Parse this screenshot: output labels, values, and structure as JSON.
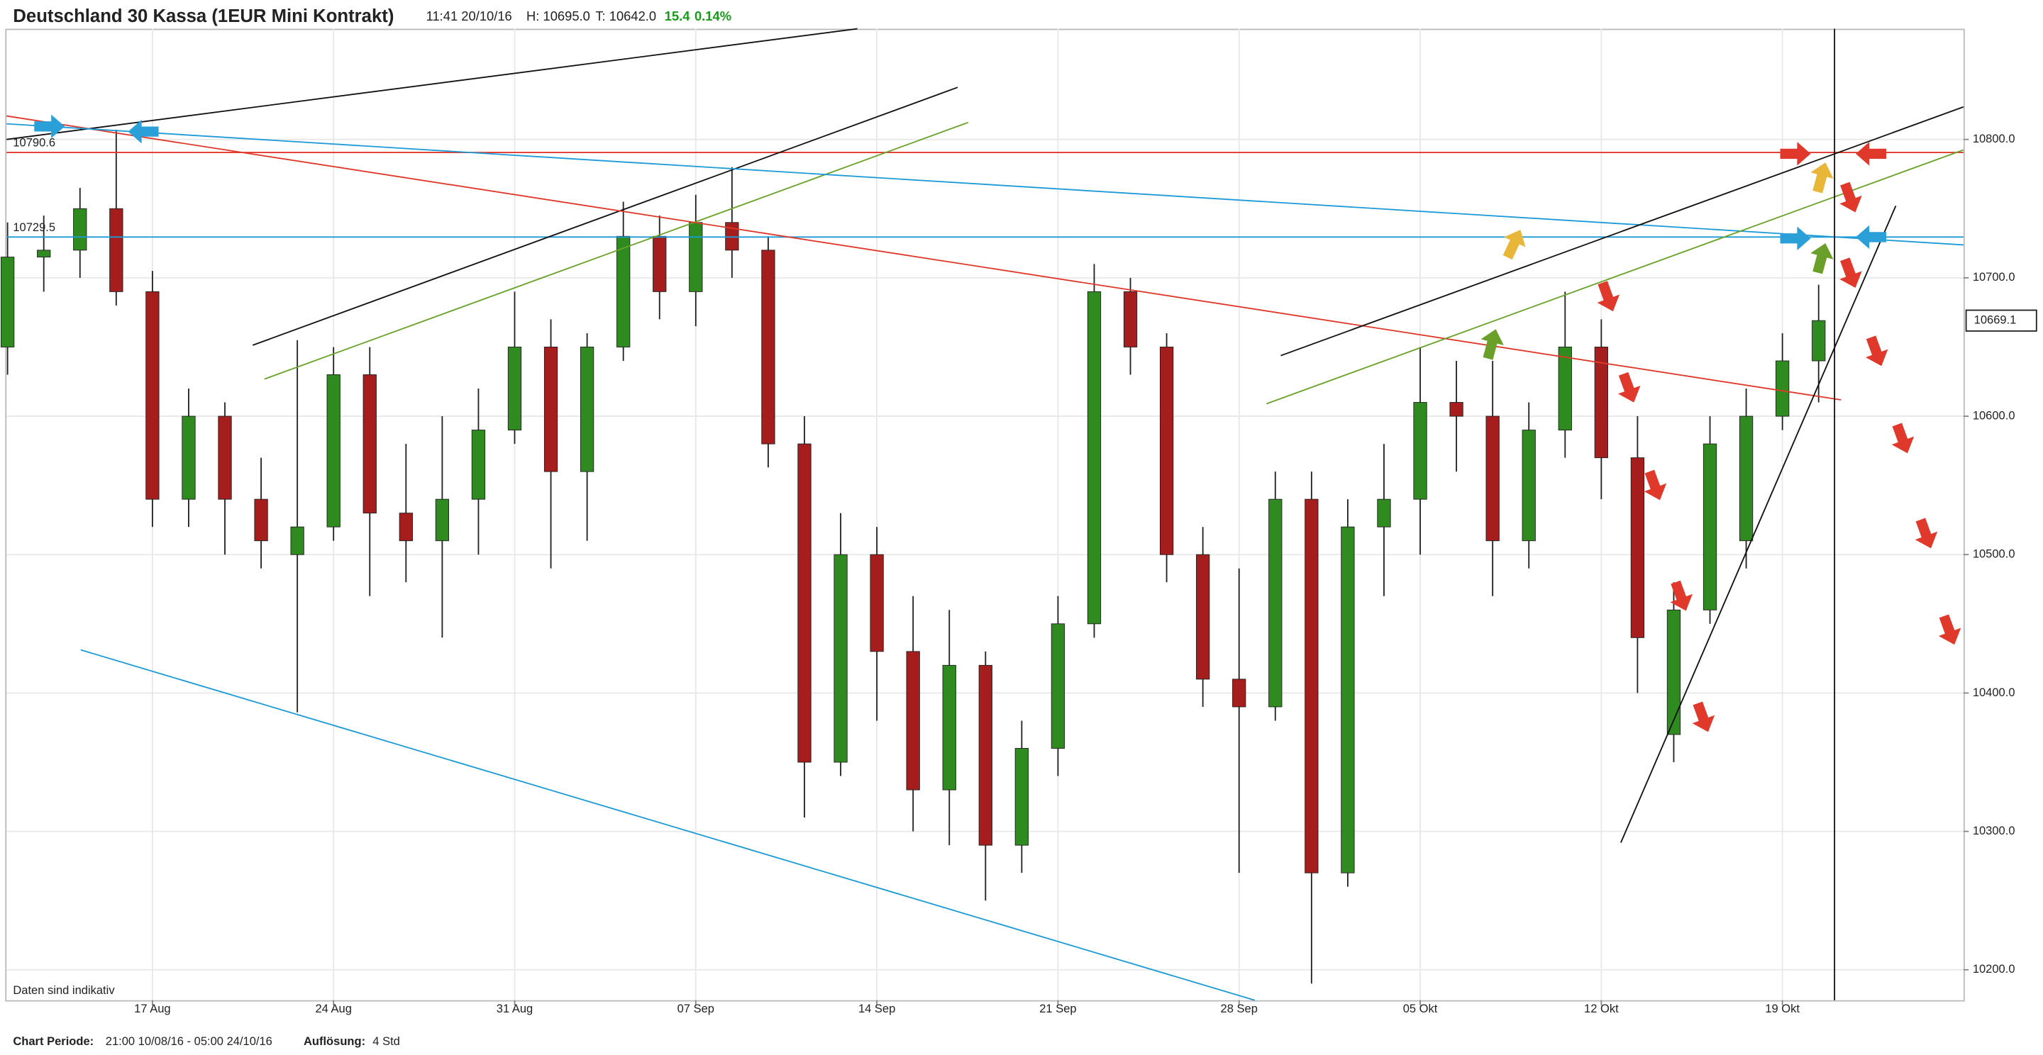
{
  "header": {
    "title": "Deutschland 30 Kassa (1EUR Mini Kontrakt)",
    "time": "11:41 20/10/16",
    "high": "H: 10695.0",
    "low": "T: 10642.0",
    "change": "15.4",
    "change_pct": "0.14%"
  },
  "footer": {
    "period_label": "Chart Periode:",
    "period": "21:00 10/08/16 - 05:00 24/10/16",
    "resolution_label": "Auflösung:",
    "resolution": "4 Std"
  },
  "chart_data": {
    "type": "candlestick",
    "note": "Daten sind indikativ",
    "categories": [
      null,
      null,
      null,
      null,
      "17 Aug",
      null,
      null,
      null,
      null,
      "24 Aug",
      null,
      null,
      null,
      null,
      "31 Aug",
      null,
      null,
      null,
      null,
      "07 Sep",
      null,
      null,
      null,
      null,
      "14 Sep",
      null,
      null,
      null,
      null,
      "21 Sep",
      null,
      null,
      null,
      null,
      "28 Sep",
      null,
      null,
      null,
      null,
      "05 Okt",
      null,
      null,
      null,
      null,
      "12 Okt",
      null,
      null,
      null,
      null,
      "19 Okt",
      null
    ],
    "open": [
      10650,
      10715,
      10720,
      10750,
      10690,
      10540,
      10600,
      10540,
      10500,
      10520,
      10630,
      10530,
      10510,
      10540,
      10590,
      10650,
      10560,
      10650,
      10730,
      10690,
      10740,
      10720,
      10580,
      10350,
      10500,
      10430,
      10330,
      10420,
      10290,
      10360,
      10450,
      10690,
      10650,
      10500,
      10410,
      10390,
      10540,
      10270,
      10520,
      10540,
      10610,
      10600,
      10510,
      10590,
      10650,
      10570,
      10370,
      10460,
      10510,
      10600,
      10640
    ],
    "high": [
      10740,
      10745,
      10765,
      10807,
      10705,
      10620,
      10610,
      10570,
      10655,
      10650,
      10650,
      10580,
      10600,
      10620,
      10690,
      10670,
      10660,
      10755,
      10745,
      10760,
      10780,
      10730,
      10600,
      10530,
      10520,
      10470,
      10460,
      10430,
      10380,
      10470,
      10710,
      10700,
      10660,
      10520,
      10490,
      10560,
      10560,
      10540,
      10580,
      10650,
      10640,
      10640,
      10610,
      10690,
      10670,
      10600,
      10480,
      10600,
      10620,
      10660,
      10695
    ],
    "low": [
      10630,
      10690,
      10700,
      10680,
      10520,
      10520,
      10500,
      10490,
      10386,
      10510,
      10470,
      10480,
      10440,
      10500,
      10580,
      10490,
      10510,
      10640,
      10670,
      10665,
      10700,
      10563,
      10310,
      10340,
      10380,
      10300,
      10290,
      10250,
      10270,
      10340,
      10440,
      10630,
      10480,
      10390,
      10270,
      10380,
      10190,
      10260,
      10470,
      10500,
      10560,
      10470,
      10490,
      10570,
      10540,
      10400,
      10350,
      10450,
      10490,
      10590,
      10610
    ],
    "close": [
      10715,
      10720,
      10750,
      10690,
      10540,
      10600,
      10540,
      10510,
      10520,
      10630,
      10530,
      10510,
      10540,
      10590,
      10650,
      10560,
      10650,
      10730,
      10690,
      10740,
      10720,
      10580,
      10350,
      10500,
      10430,
      10330,
      10420,
      10290,
      10360,
      10450,
      10690,
      10650,
      10500,
      10410,
      10390,
      10540,
      10270,
      10520,
      10540,
      10610,
      10600,
      10510,
      10590,
      10650,
      10570,
      10440,
      10460,
      10580,
      10600,
      10640,
      10669.1
    ],
    "up_color": "#2f8a1f",
    "down_color": "#a51d1d",
    "hlines": [
      {
        "value": 10790.6,
        "color": "#e0392b"
      },
      {
        "value": 10729.5,
        "color": "#1e9bd7"
      }
    ],
    "ylim": [
      10178,
      10880
    ],
    "yticks": [
      {
        "value": 10200,
        "label": "10200.0"
      },
      {
        "value": 10300,
        "label": "10300.0"
      },
      {
        "value": 10400,
        "label": "10400.0"
      },
      {
        "value": 10500,
        "label": "10500.0"
      },
      {
        "value": 10600,
        "label": "10600.0"
      },
      {
        "value": 10700,
        "label": "10700.0"
      },
      {
        "value": 10800,
        "label": "10800.0"
      }
    ],
    "grid": true
  }
}
